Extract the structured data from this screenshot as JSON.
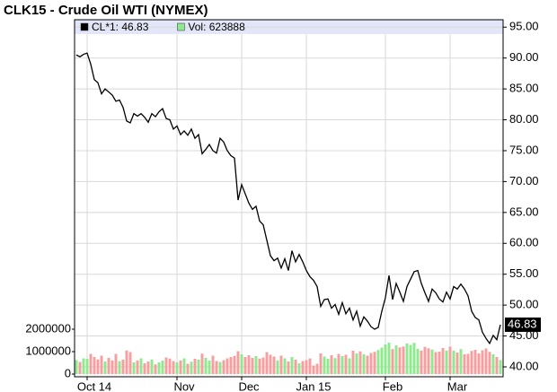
{
  "chart_data": {
    "type": "line",
    "title": "CLK15 - Crude Oil WTI (NYMEX)",
    "categories": [
      null,
      null,
      null,
      "Oct 14",
      null,
      null,
      null,
      null,
      null,
      null,
      null,
      null,
      null,
      null,
      null,
      null,
      null,
      null,
      null,
      null,
      null,
      null,
      null,
      null,
      null,
      null,
      null,
      null,
      "Nov",
      null,
      null,
      null,
      null,
      null,
      null,
      null,
      null,
      null,
      null,
      null,
      null,
      null,
      null,
      null,
      null,
      null,
      "Dec",
      null,
      null,
      null,
      null,
      null,
      null,
      null,
      null,
      null,
      null,
      null,
      null,
      null,
      null,
      null,
      null,
      null,
      "Jan 15",
      null,
      null,
      null,
      null,
      null,
      null,
      null,
      null,
      null,
      null,
      null,
      null,
      null,
      null,
      null,
      null,
      null,
      null,
      null,
      null,
      null,
      "Feb",
      null,
      null,
      null,
      null,
      null,
      null,
      null,
      null,
      null,
      null,
      null,
      null,
      null,
      null,
      null,
      null,
      null,
      "Mar",
      null,
      null,
      null,
      null,
      null,
      null,
      null,
      null,
      null,
      null,
      null,
      null,
      null,
      null
    ],
    "series": [
      {
        "name": "CL*1: 46.83",
        "color": "#000000",
        "values": [
          90.5,
          90.2,
          90.6,
          90.8,
          89,
          86.5,
          86,
          84.2,
          85,
          84.5,
          84,
          83,
          83.2,
          82,
          79.8,
          79.5,
          81,
          80.6,
          81,
          80.4,
          79.6,
          81,
          80.5,
          81.3,
          81.8,
          80.2,
          80,
          78.5,
          79,
          77.6,
          78.2,
          77.5,
          78.5,
          77,
          77.6,
          74.5,
          75.2,
          76,
          75,
          74.6,
          77,
          76.4,
          75,
          74.2,
          73.8,
          67,
          69.5,
          68,
          66.5,
          65.5,
          66,
          63.6,
          63,
          60.5,
          58,
          57.2,
          57.6,
          56,
          57.5,
          55.6,
          58.8,
          57,
          58.2,
          57,
          55.6,
          54.6,
          54,
          53,
          49.8,
          50.9,
          51,
          49.5,
          50.1,
          48.5,
          50.4,
          48.6,
          49.5,
          47.6,
          49,
          46.6,
          48.1,
          47.4,
          46.5,
          46.1,
          46.4,
          49,
          51.2,
          54.8,
          50.9,
          53.5,
          52.1,
          50.6,
          53,
          54.2,
          55.4,
          55.6,
          53.5,
          52,
          50.6,
          52.6,
          52,
          51,
          50.5,
          52.1,
          51,
          53,
          52.6,
          53.4,
          52.6,
          51.5,
          49,
          48,
          47.6,
          45.6,
          44.6,
          43.8,
          45.1,
          44.4,
          46.83
        ]
      },
      {
        "name": "Vol: 623888",
        "color": "#90e890",
        "axis": "y2",
        "down_color": "#f4a0a0",
        "values": [
          620000,
          540000,
          700000,
          680000,
          900000,
          760000,
          650000,
          820000,
          560000,
          720000,
          610000,
          900000,
          580000,
          640000,
          1050000,
          980000,
          520000,
          610000,
          700000,
          480000,
          560000,
          650000,
          430000,
          520000,
          600000,
          740000,
          690000,
          580000,
          520000,
          610000,
          700000,
          460000,
          550000,
          680000,
          640000,
          910000,
          720000,
          600000,
          820000,
          580000,
          540000,
          620000,
          700000,
          760000,
          810000,
          1020000,
          880000,
          760000,
          840000,
          720000,
          800000,
          690000,
          740000,
          980000,
          860000,
          780000,
          610000,
          820000,
          700000,
          560000,
          760000,
          640000,
          480000,
          580000,
          620000,
          700000,
          380000,
          460000,
          920000,
          780000,
          680000,
          840000,
          710000,
          900000,
          800000,
          860000,
          700000,
          1040000,
          920000,
          1010000,
          880000,
          820000,
          940000,
          990000,
          1070000,
          1180000,
          1320000,
          1400000,
          1110000,
          1280000,
          1190000,
          1230000,
          1360000,
          1300000,
          1390000,
          1120000,
          1050000,
          1210000,
          1150000,
          1090000,
          980000,
          1000000,
          1160000,
          1050000,
          1220000,
          1040000,
          960000,
          1110000,
          880000,
          900000,
          1030000,
          1080000,
          920000,
          1060000,
          1140000,
          990000,
          880000,
          760000,
          623888
        ]
      }
    ],
    "ylim": [
      38.4,
      96.2
    ],
    "yticks": [
      {
        "value": 40,
        "label": "40.00"
      },
      {
        "value": 45,
        "label": "45.00"
      },
      {
        "value": 50,
        "label": "50.00"
      },
      {
        "value": 55,
        "label": "55.00"
      },
      {
        "value": 60,
        "label": "60.00"
      },
      {
        "value": 65,
        "label": "65.00"
      },
      {
        "value": 70,
        "label": "70.00"
      },
      {
        "value": 75,
        "label": "75.00"
      },
      {
        "value": 80,
        "label": "80.00"
      },
      {
        "value": 85,
        "label": "85.00"
      },
      {
        "value": 90,
        "label": "90.00"
      },
      {
        "value": 95,
        "label": "95.00"
      }
    ],
    "y2lim": [
      -120000,
      15800000
    ],
    "y2ticks": [
      0,
      1000000,
      2000000
    ],
    "grid": true
  }
}
